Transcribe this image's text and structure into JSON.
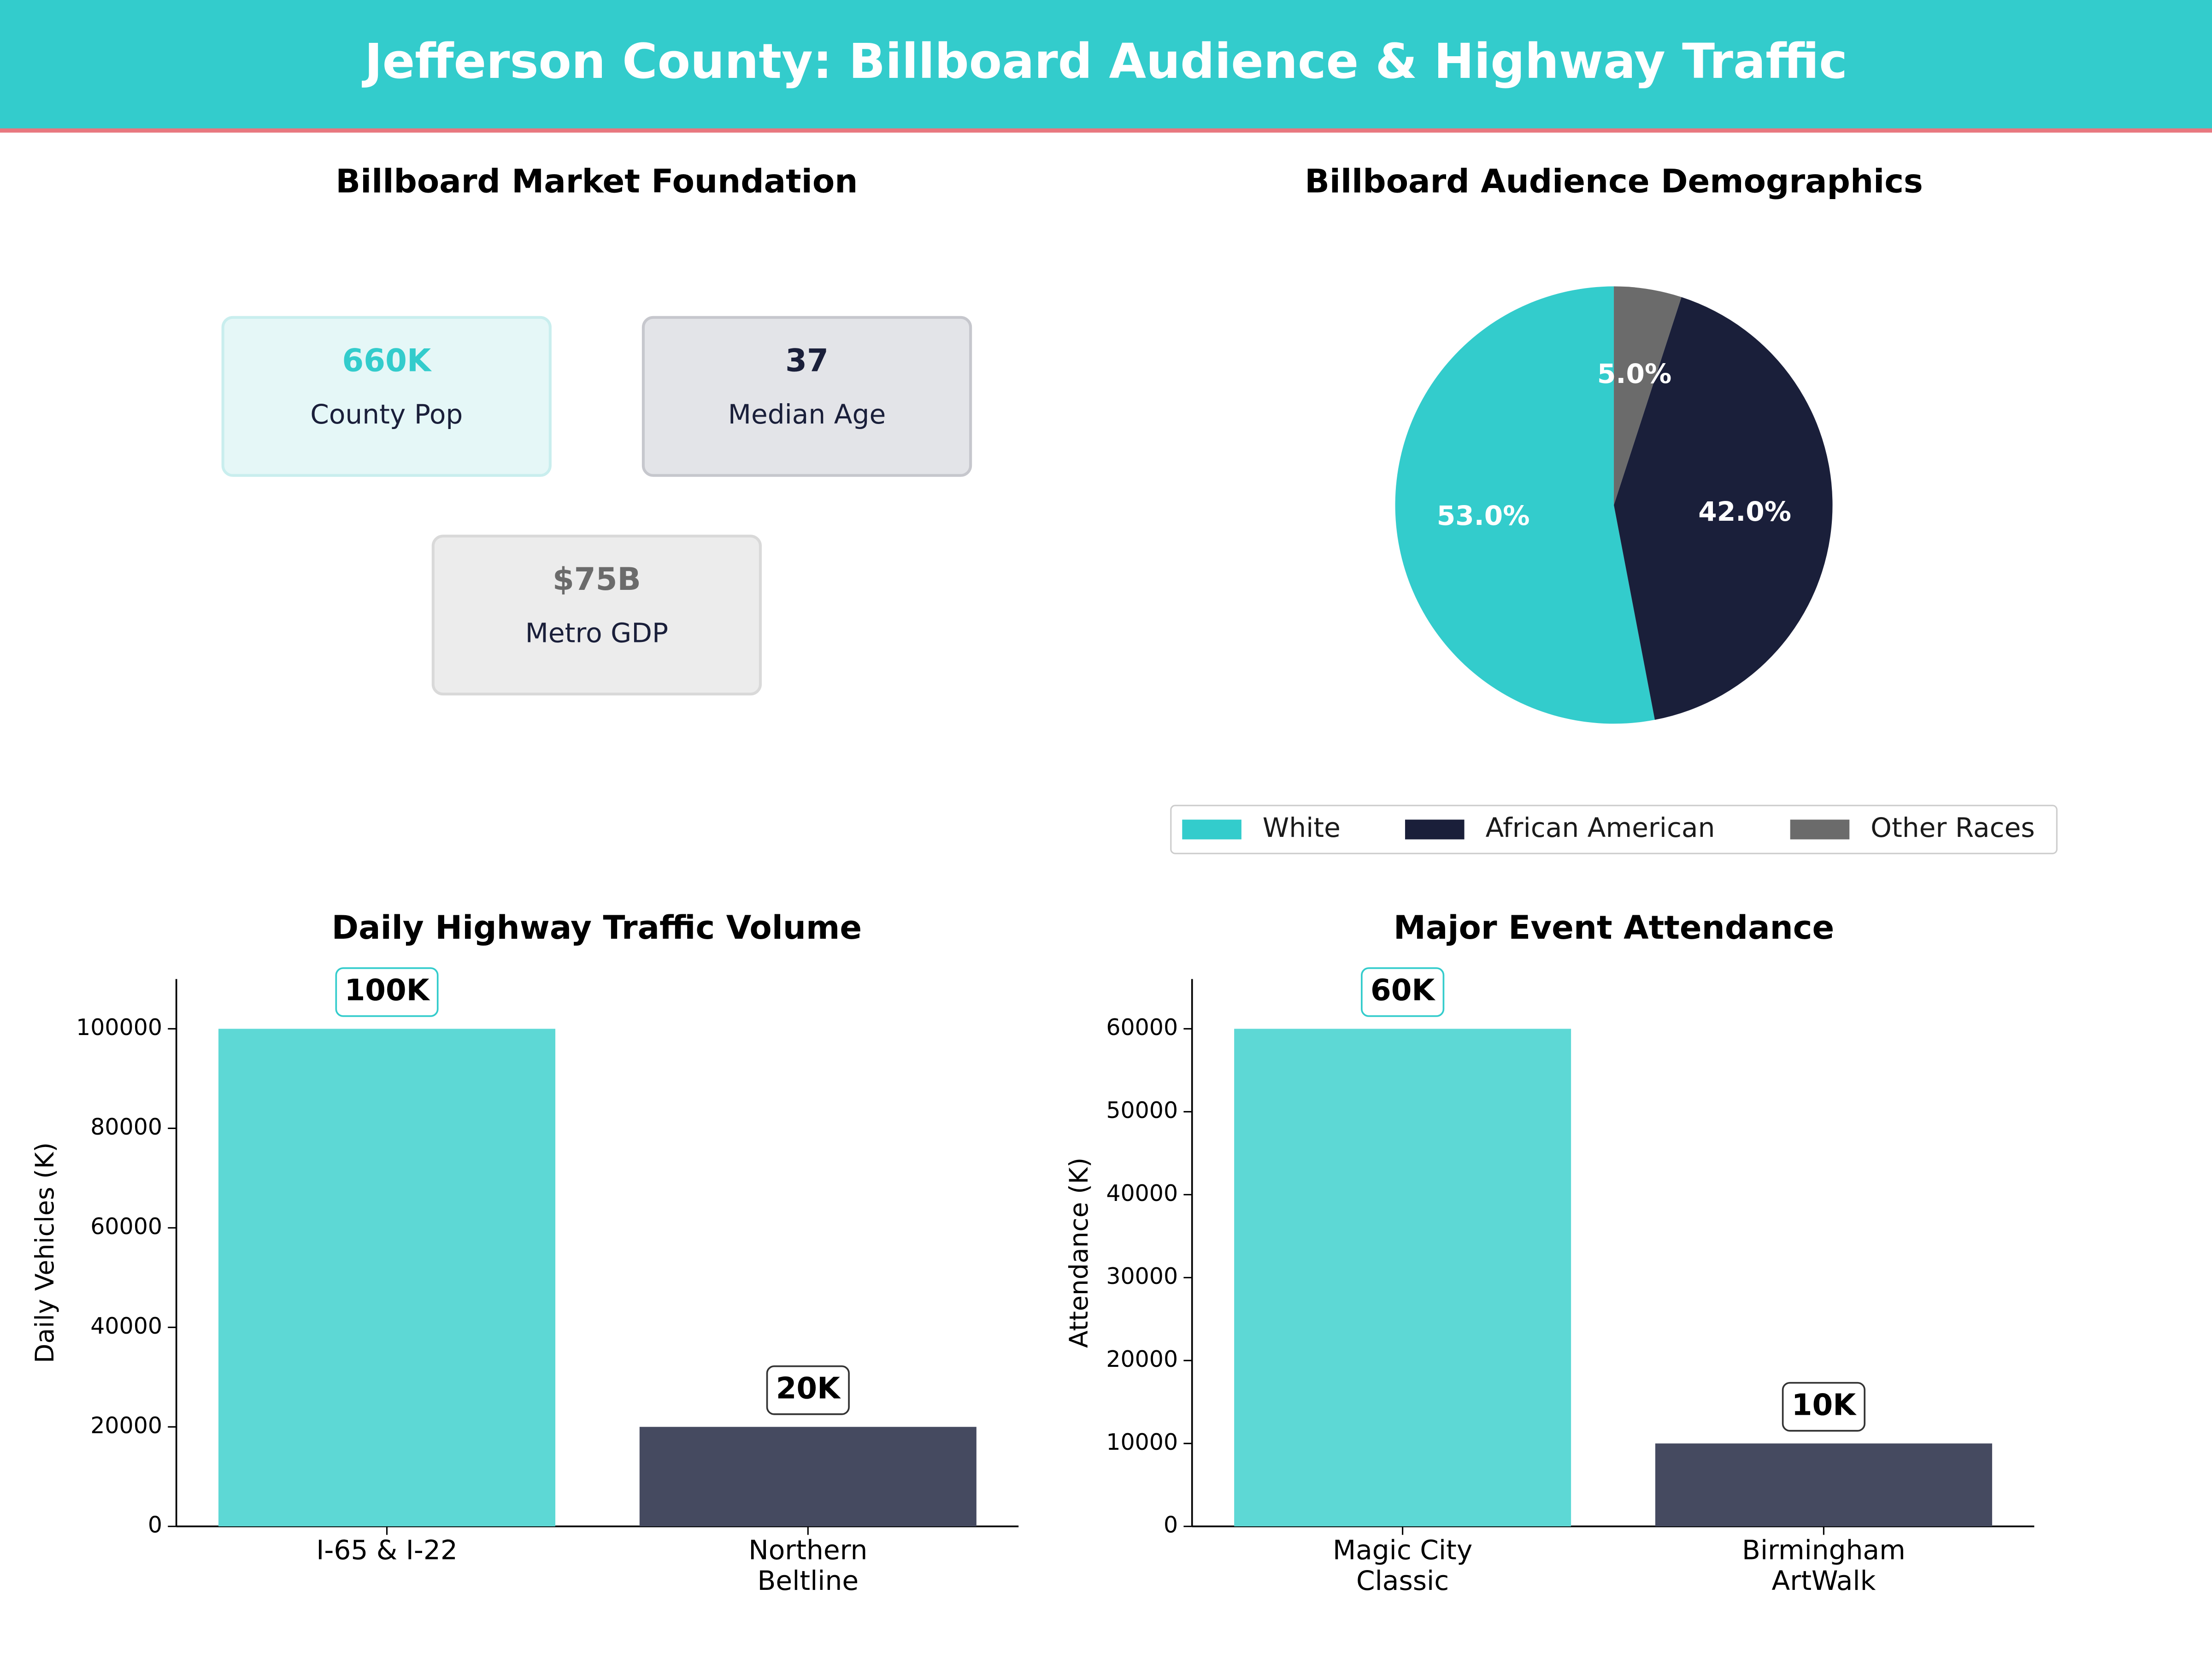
{
  "title": "Jefferson County: Billboard Audience & Highway Traffic",
  "chart_data": [
    {
      "type": "cards",
      "title": "Billboard Market Foundation",
      "cards": [
        {
          "value": "660K",
          "label": "County Pop",
          "color": "#33cccc"
        },
        {
          "value": "37",
          "label": "Median Age",
          "color": "#1a1f3a"
        },
        {
          "value": "$75B",
          "label": "Metro GDP",
          "color": "#6b6b6b"
        }
      ]
    },
    {
      "type": "pie",
      "title": "Billboard Audience Demographics",
      "categories": [
        "White",
        "African American",
        "Other Races"
      ],
      "values": [
        53,
        42,
        5
      ],
      "value_labels": [
        "53.0%",
        "42.0%",
        "5.0%"
      ],
      "colors": [
        "#33cccc",
        "#1a1f3a",
        "#6b6b6b"
      ]
    },
    {
      "type": "bar",
      "title": "Daily Highway Traffic Volume",
      "ylabel": "Daily Vehicles (K)",
      "categories": [
        "I-65 & I-22",
        "Northern\nBeltline"
      ],
      "values": [
        100000,
        20000
      ],
      "value_labels": [
        "100K",
        "20K"
      ],
      "colors": [
        "#5dd8d5",
        "#454a60"
      ],
      "ylim": [
        0,
        110000
      ],
      "yticks": [
        0,
        20000,
        40000,
        60000,
        80000,
        100000
      ]
    },
    {
      "type": "bar",
      "title": "Major Event Attendance",
      "ylabel": "Attendance (K)",
      "categories": [
        "Magic City\nClassic",
        "Birmingham\nArtWalk"
      ],
      "values": [
        60000,
        10000
      ],
      "value_labels": [
        "60K",
        "10K"
      ],
      "colors": [
        "#5dd8d5",
        "#454a60"
      ],
      "ylim": [
        0,
        66000
      ],
      "yticks": [
        0,
        10000,
        20000,
        30000,
        40000,
        50000,
        60000
      ]
    }
  ]
}
